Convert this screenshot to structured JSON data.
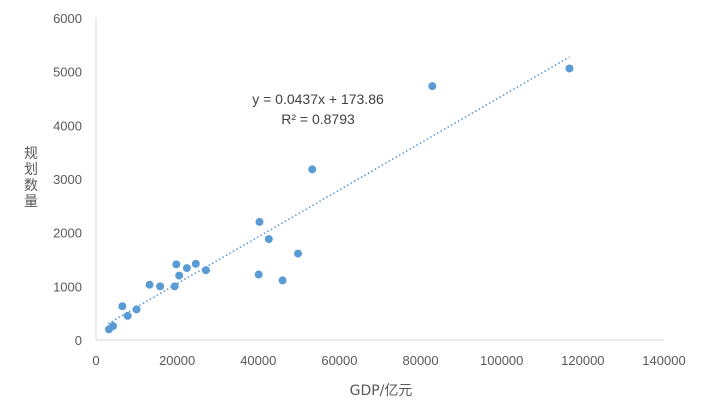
{
  "chart_data": {
    "type": "scatter",
    "title": "",
    "xlabel": "GDP/亿元",
    "ylabel": "规划数量",
    "xlim": [
      0,
      140000
    ],
    "ylim": [
      0,
      6000
    ],
    "x_ticks": [
      "0",
      "20000",
      "40000",
      "60000",
      "80000",
      "100000",
      "120000",
      "140000"
    ],
    "y_ticks": [
      "0",
      "1000",
      "2000",
      "3000",
      "4000",
      "5000",
      "6000"
    ],
    "grid": false,
    "legend": "none",
    "colors": {
      "marker": "#5b9bd5",
      "trendline": "#5b9bd5",
      "axis": "#d9d9d9",
      "text": "#595959"
    },
    "series": [
      {
        "points": [
          [
            3200,
            200
          ],
          [
            4200,
            260
          ],
          [
            6500,
            630
          ],
          [
            7800,
            450
          ],
          [
            10000,
            570
          ],
          [
            13200,
            1030
          ],
          [
            15800,
            1000
          ],
          [
            19400,
            1000
          ],
          [
            19800,
            1410
          ],
          [
            20500,
            1200
          ],
          [
            22400,
            1340
          ],
          [
            24600,
            1420
          ],
          [
            27100,
            1300
          ],
          [
            40100,
            1220
          ],
          [
            40300,
            2200
          ],
          [
            42600,
            1880
          ],
          [
            46000,
            1110
          ],
          [
            49800,
            1610
          ],
          [
            53300,
            3180
          ],
          [
            82900,
            4730
          ],
          [
            116700,
            5060
          ]
        ]
      }
    ],
    "trendline": {
      "type": "linear",
      "slope": 0.0437,
      "intercept": 173.86,
      "x_range": [
        3000,
        116700
      ],
      "equation": "y = 0.0437x + 173.86",
      "r_squared": "R² = 0.8793"
    }
  }
}
